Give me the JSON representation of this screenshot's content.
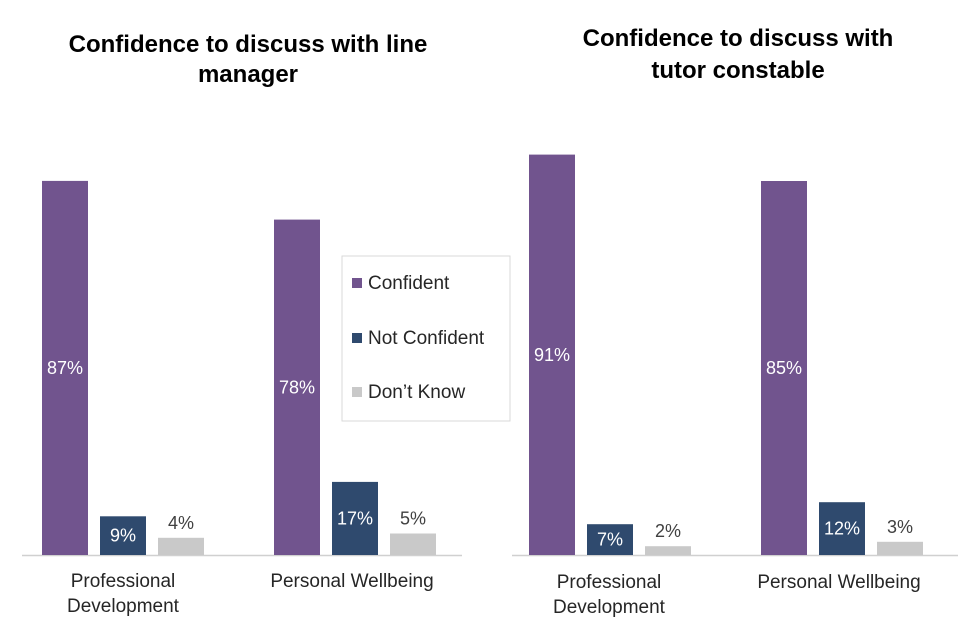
{
  "colors": {
    "confident": "#71548E",
    "not_confident": "#2F4A6E",
    "dont_know": "#C9C9C9",
    "axis": "#D0D0D0",
    "label_inside": "#FFFFFF",
    "label_outside": "#404040"
  },
  "legend": {
    "items": [
      {
        "label": "Confident",
        "color": "#71548E"
      },
      {
        "label": "Not Confident",
        "color": "#2F4A6E"
      },
      {
        "label": "Don’t Know",
        "color": "#C9C9C9"
      }
    ]
  },
  "chart_data": [
    {
      "type": "bar",
      "title": "Confidence to discuss with line manager",
      "title_lines": [
        "Confidence to discuss with line",
        "manager"
      ],
      "categories": [
        "Professional Development",
        "Personal Wellbeing"
      ],
      "category_lines": [
        [
          "Professional",
          "Development"
        ],
        [
          "Personal Wellbeing"
        ]
      ],
      "series": [
        {
          "name": "Confident",
          "values": [
            87,
            78
          ]
        },
        {
          "name": "Not Confident",
          "values": [
            9,
            17
          ]
        },
        {
          "name": "Don’t Know",
          "values": [
            4,
            5
          ]
        }
      ],
      "value_labels": [
        [
          "87%",
          "78%"
        ],
        [
          "9%",
          "17%"
        ],
        [
          "4%",
          "5%"
        ]
      ],
      "unit": "%",
      "ylim": [
        0,
        100
      ],
      "grid": false,
      "xlabel": "",
      "ylabel": ""
    },
    {
      "type": "bar",
      "title": "Confidence to discuss with tutor constable",
      "title_lines": [
        "Confidence to discuss with",
        "tutor constable"
      ],
      "categories": [
        "Professional Development",
        "Personal Wellbeing"
      ],
      "category_lines": [
        [
          "Professional",
          "Development"
        ],
        [
          "Personal Wellbeing"
        ]
      ],
      "series": [
        {
          "name": "Confident",
          "values": [
            91,
            85
          ]
        },
        {
          "name": "Not Confident",
          "values": [
            7,
            12
          ]
        },
        {
          "name": "Don’t Know",
          "values": [
            2,
            3
          ]
        }
      ],
      "value_labels": [
        [
          "91%",
          "85%"
        ],
        [
          "7%",
          "12%"
        ],
        [
          "2%",
          "3%"
        ]
      ],
      "unit": "%",
      "ylim": [
        0,
        100
      ],
      "grid": false,
      "xlabel": "",
      "ylabel": ""
    }
  ]
}
